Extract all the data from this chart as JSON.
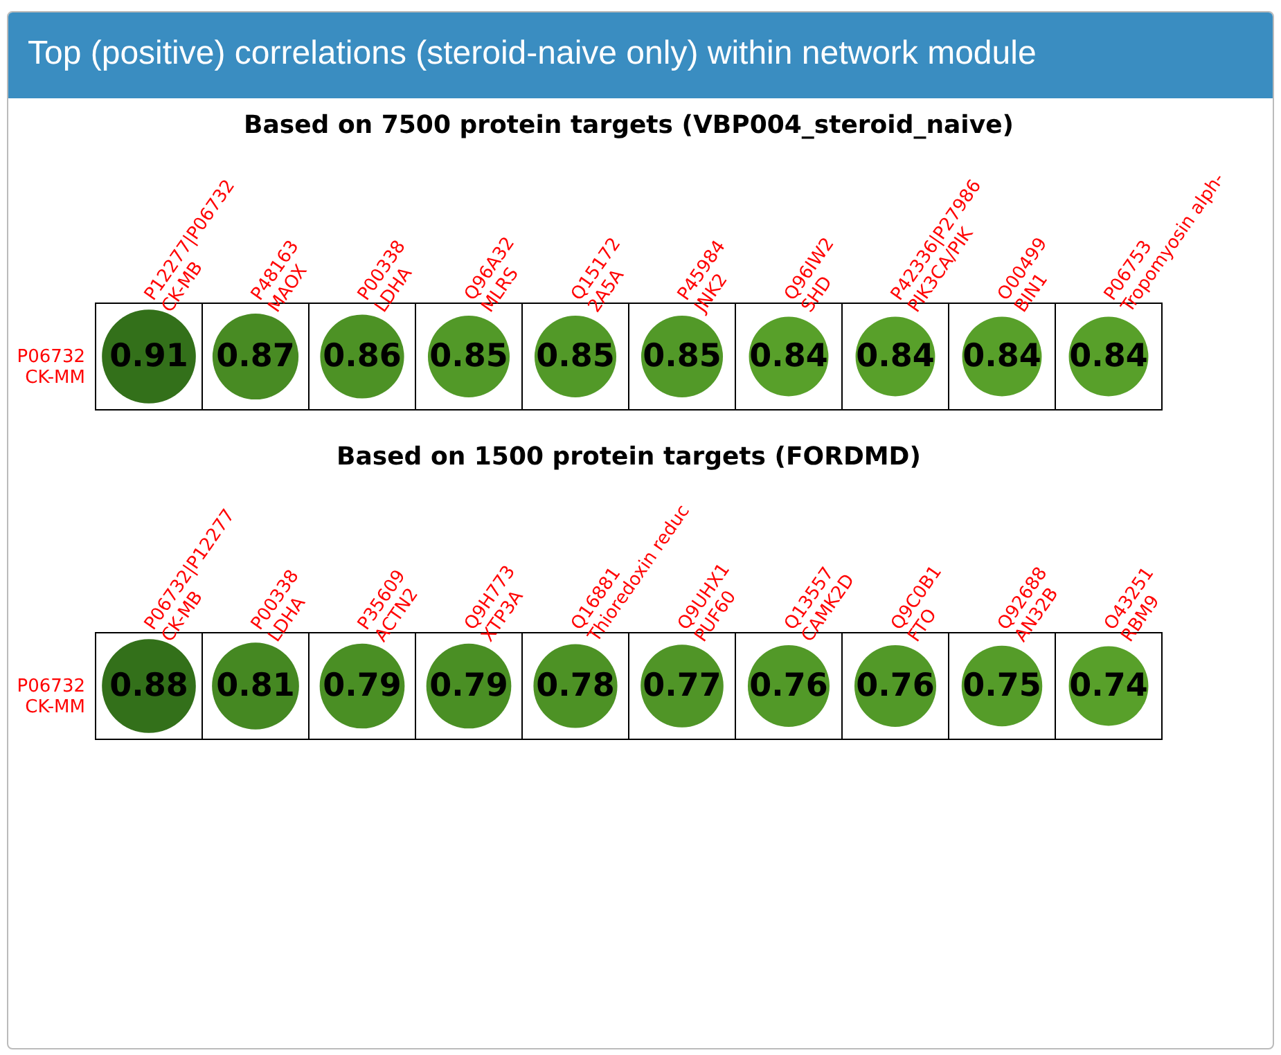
{
  "chart_data": [
    {
      "type": "heatmap",
      "title": "Top (positive) correlations (steroid-naive only) within network module",
      "subtitle": "Based on 7500 protein targets (VBP004_steroid_naive)",
      "categories": [
        "P12277|P06732\nCK-MB",
        "P48163\nMAOX",
        "P00338\nLDHA",
        "Q96A32\nMLRS",
        "Q15172\n2A5A",
        "P45984\nJNK2",
        "Q96IW2\nSHD",
        "P42336|P27986\nPIK3CA/PIK",
        "O00499\nBIN1",
        "P06753\nTropomyosin alph-"
      ],
      "y_categories": [
        "P06732\nCK-MM"
      ],
      "cells": [
        [
          0.91,
          0.87,
          0.86,
          0.85,
          0.85,
          0.85,
          0.84,
          0.84,
          0.84,
          0.84
        ]
      ],
      "data_labels": true
    },
    {
      "type": "heatmap",
      "title": "Based on 1500 protein targets (FORDMD)",
      "categories": [
        "P06732|P12277\nCK-MB",
        "P00338\nLDHA",
        "P35609\nACTN2",
        "Q9H773\nXTP3A",
        "Q16881\nThioredoxin reduc",
        "Q9UHX1\nPUF60",
        "Q13557\nCAMK2D",
        "Q9C0B1\nFTO",
        "Q92688\nAN32B",
        "O43251\nRBM9"
      ],
      "y_categories": [
        "P06732\nCK-MM"
      ],
      "cells": [
        [
          0.88,
          0.81,
          0.79,
          0.79,
          0.78,
          0.77,
          0.76,
          0.76,
          0.75,
          0.74
        ]
      ],
      "data_labels": true
    }
  ]
}
